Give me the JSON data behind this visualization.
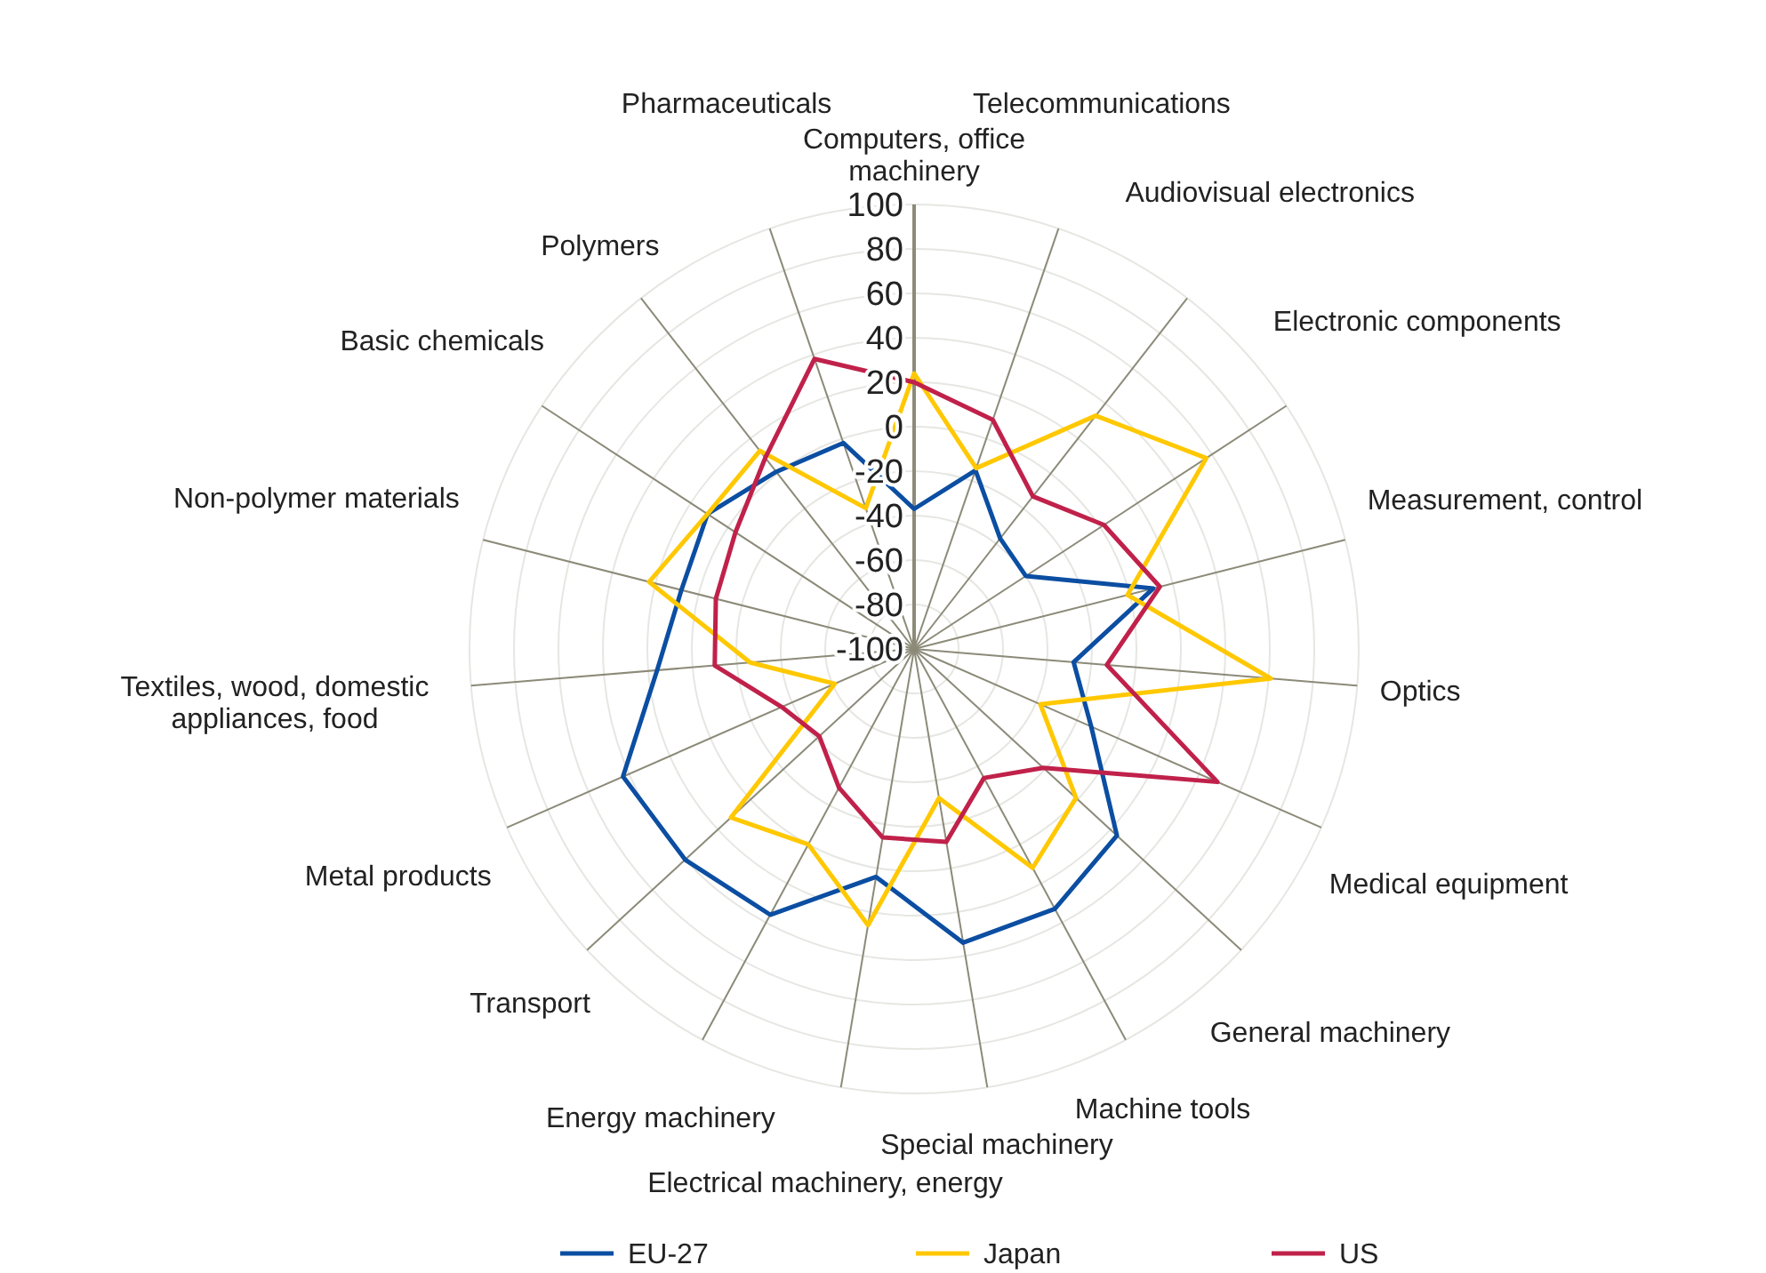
{
  "chart_data": {
    "type": "radar",
    "categories": [
      "Computers, office machinery",
      "Telecommunications",
      "Audiovisual electronics",
      "Electronic components",
      "Measurement, control",
      "Optics",
      "Medical equipment",
      "General machinery",
      "Machine tools",
      "Special machinery",
      "Electrical machinery, energy",
      "Energy machinery",
      "Transport",
      "Metal products",
      "Textiles, wood, domestic appliances, food",
      "Non-polymer materials",
      "Basic chemicals",
      "Polymers",
      "Pharmaceuticals"
    ],
    "series": [
      {
        "name": "EU-27",
        "color": "#0b4ea2",
        "values": [
          -37,
          -15,
          -37,
          -40,
          11,
          -28,
          -13,
          24,
          33,
          34,
          4,
          36,
          40,
          43,
          16,
          8,
          11,
          1,
          -2
        ]
      },
      {
        "name": "Japan",
        "color": "#ffc800",
        "values": [
          24,
          -14,
          33,
          57,
          -1,
          61,
          -38,
          -1,
          12,
          -32,
          26,
          0,
          12,
          -61,
          -26,
          23,
          11,
          13,
          -33
        ]
      },
      {
        "name": "US",
        "color": "#c0214a",
        "values": [
          20,
          9,
          -13,
          2,
          14,
          -13,
          49,
          -21,
          -34,
          -12,
          -14,
          -29,
          -42,
          -35,
          -10,
          -8,
          -4,
          9,
          38
        ]
      }
    ],
    "ylim": [
      -100,
      100
    ],
    "yticks": [
      -100,
      -80,
      -60,
      -40,
      -20,
      0,
      20,
      40,
      60,
      80,
      100
    ],
    "grid": true,
    "legend": "bottom"
  }
}
